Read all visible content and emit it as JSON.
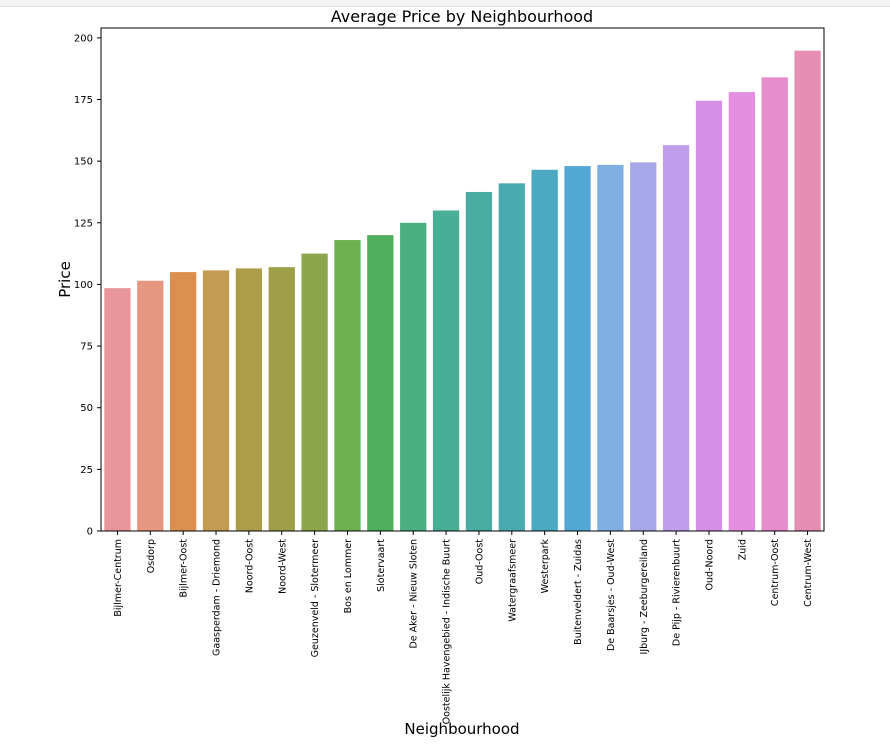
{
  "chart_data": {
    "type": "bar",
    "title": "Average Price by Neighbourhood",
    "xlabel": "Neighbourhood",
    "ylabel": "Price",
    "ylim": [
      0,
      204
    ],
    "yticks": [
      0,
      25,
      50,
      75,
      100,
      125,
      150,
      175,
      200
    ],
    "grid": false,
    "categories": [
      "Bijlmer-Centrum",
      "Osdorp",
      "Bijlmer-Oost",
      "Gaasperdam - Driemond",
      "Noord-Oost",
      "Noord-West",
      "Geuzenveld - Slotermeer",
      "Bos en Lommer",
      "Slotervaart",
      "De Aker - Nieuw Sloten",
      "Oostelijk Havengebied - Indische Buurt",
      "Oud-Oost",
      "Watergraafsmeer",
      "Westerpark",
      "Buitenveldert - Zuidas",
      "De Baarsjes - Oud-West",
      "IJburg - Zeeburgereiland",
      "De Pijp - Rivierenbuurt",
      "Oud-Noord",
      "Zuid",
      "Centrum-Oost",
      "Centrum-West"
    ],
    "values": [
      98.5,
      101.5,
      105,
      105.7,
      106.5,
      107,
      112.5,
      118,
      120,
      125,
      130,
      137.5,
      141,
      146.5,
      148,
      148.5,
      149.5,
      156.5,
      174.5,
      178,
      184,
      194.8
    ],
    "colors": [
      "#e8969b",
      "#e7977f",
      "#dc8f4e",
      "#c49b50",
      "#ad9d49",
      "#9f9e49",
      "#8ea64b",
      "#6bb14f",
      "#4faf5c",
      "#4bae83",
      "#4aad95",
      "#4aaca3",
      "#4aaab0",
      "#4aa9c0",
      "#52a7d3",
      "#7faee3",
      "#a7a8ea",
      "#c19deb",
      "#d590e6",
      "#e48ee0",
      "#e78ccd",
      "#e68db3"
    ]
  }
}
